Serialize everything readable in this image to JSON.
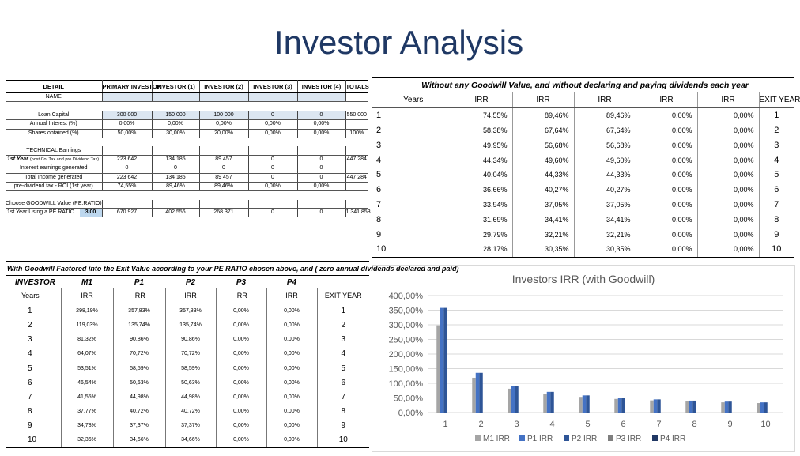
{
  "title": "Investor Analysis",
  "detail": {
    "headers": [
      "DETAIL",
      "PRIMARY INVESTOR",
      "INVESTOR (1)",
      "INVESTOR (2)",
      "INVESTOR (3)",
      "INVESTOR (4)",
      "TOTALS"
    ],
    "name_label": "NAME",
    "loan_capital": [
      "Loan Capital",
      "300 000",
      "150 000",
      "100 000",
      "0",
      "0",
      "550 000"
    ],
    "annual_interest": [
      "Annual Interest (%)",
      "0,00%",
      "0,00%",
      "0,00%",
      "0,00%",
      "0,00%",
      ""
    ],
    "shares_obtained": [
      "Shares obtained (%)",
      "50,00%",
      "30,00%",
      "20,00%",
      "0,00%",
      "0,00%",
      "100%"
    ],
    "technical_earnings": "TECHNICAL Earnings",
    "first_year_label": "1st Year",
    "first_year_note": "(post Co. Tax and pre Dividend Tax)",
    "first_year": [
      "223 642",
      "134 185",
      "89 457",
      "0",
      "0",
      "447 284"
    ],
    "interest_earnings": [
      "Interest earnings generated",
      "0",
      "0",
      "0",
      "0",
      "0",
      ""
    ],
    "total_income": [
      "Total Income generated",
      "223 642",
      "134 185",
      "89 457",
      "0",
      "0",
      "447 284"
    ],
    "pre_div_tax": [
      "pre-dividend tax - ROI (1st year)",
      "74,55%",
      "89,46%",
      "89,46%",
      "0,00%",
      "0,00%",
      ""
    ],
    "goodwill_label": "Choose GOODWILL Value (PE:RATIO)",
    "pe_label": "1st Year Using a PE RATIO",
    "pe_value": "3,00",
    "pe_row": [
      "670 927",
      "402 556",
      "268 371",
      "0",
      "0",
      "1 341 853"
    ]
  },
  "irr_no_goodwill": {
    "caption": "Without any Goodwill Value, and without declaring and paying dividends each year",
    "headers": [
      "Years",
      "IRR",
      "IRR",
      "IRR",
      "IRR",
      "IRR",
      "EXIT YEAR"
    ],
    "rows": [
      [
        "1",
        "74,55%",
        "89,46%",
        "89,46%",
        "0,00%",
        "0,00%",
        "1"
      ],
      [
        "2",
        "58,38%",
        "67,64%",
        "67,64%",
        "0,00%",
        "0,00%",
        "2"
      ],
      [
        "3",
        "49,95%",
        "56,68%",
        "56,68%",
        "0,00%",
        "0,00%",
        "3"
      ],
      [
        "4",
        "44,34%",
        "49,60%",
        "49,60%",
        "0,00%",
        "0,00%",
        "4"
      ],
      [
        "5",
        "40,04%",
        "44,33%",
        "44,33%",
        "0,00%",
        "0,00%",
        "5"
      ],
      [
        "6",
        "36,66%",
        "40,27%",
        "40,27%",
        "0,00%",
        "0,00%",
        "6"
      ],
      [
        "7",
        "33,94%",
        "37,05%",
        "37,05%",
        "0,00%",
        "0,00%",
        "7"
      ],
      [
        "8",
        "31,69%",
        "34,41%",
        "34,41%",
        "0,00%",
        "0,00%",
        "8"
      ],
      [
        "9",
        "29,79%",
        "32,21%",
        "32,21%",
        "0,00%",
        "0,00%",
        "9"
      ],
      [
        "10",
        "28,17%",
        "30,35%",
        "30,35%",
        "0,00%",
        "0,00%",
        "10"
      ]
    ]
  },
  "irr_goodwill": {
    "caption": "With Goodwill Factored into the Exit Value according to your PE RATIO chosen above, and ( zero annual dividends declared and paid)",
    "investor_headers": [
      "INVESTOR",
      "M1",
      "P1",
      "P2",
      "P3",
      "P4",
      ""
    ],
    "headers": [
      "Years",
      "IRR",
      "IRR",
      "IRR",
      "IRR",
      "IRR",
      "EXIT YEAR"
    ],
    "rows": [
      [
        "1",
        "298,19%",
        "357,83%",
        "357,83%",
        "0,00%",
        "0,00%",
        "1"
      ],
      [
        "2",
        "119,03%",
        "135,74%",
        "135,74%",
        "0,00%",
        "0,00%",
        "2"
      ],
      [
        "3",
        "81,32%",
        "90,86%",
        "90,86%",
        "0,00%",
        "0,00%",
        "3"
      ],
      [
        "4",
        "64,07%",
        "70,72%",
        "70,72%",
        "0,00%",
        "0,00%",
        "4"
      ],
      [
        "5",
        "53,51%",
        "58,59%",
        "58,59%",
        "0,00%",
        "0,00%",
        "5"
      ],
      [
        "6",
        "46,54%",
        "50,63%",
        "50,63%",
        "0,00%",
        "0,00%",
        "6"
      ],
      [
        "7",
        "41,55%",
        "44,98%",
        "44,98%",
        "0,00%",
        "0,00%",
        "7"
      ],
      [
        "8",
        "37,77%",
        "40,72%",
        "40,72%",
        "0,00%",
        "0,00%",
        "8"
      ],
      [
        "9",
        "34,78%",
        "37,37%",
        "37,37%",
        "0,00%",
        "0,00%",
        "9"
      ],
      [
        "10",
        "32,36%",
        "34,66%",
        "34,66%",
        "0,00%",
        "0,00%",
        "10"
      ]
    ]
  },
  "chart_data": {
    "type": "bar",
    "title": "Investors IRR (with Goodwill)",
    "categories": [
      "1",
      "2",
      "3",
      "4",
      "5",
      "6",
      "7",
      "8",
      "9",
      "10"
    ],
    "series": [
      {
        "name": "M1 IRR",
        "color": "#a5a5a5",
        "values": [
          298.19,
          119.03,
          81.32,
          64.07,
          53.51,
          46.54,
          41.55,
          37.77,
          34.78,
          32.36
        ]
      },
      {
        "name": "P1 IRR",
        "color": "#4472c4",
        "values": [
          357.83,
          135.74,
          90.86,
          70.72,
          58.59,
          50.63,
          44.98,
          40.72,
          37.37,
          34.66
        ]
      },
      {
        "name": "P2 IRR",
        "color": "#2e5597",
        "values": [
          357.83,
          135.74,
          90.86,
          70.72,
          58.59,
          50.63,
          44.98,
          40.72,
          37.37,
          34.66
        ]
      },
      {
        "name": "P3 IRR",
        "color": "#7f7f7f",
        "values": [
          0,
          0,
          0,
          0,
          0,
          0,
          0,
          0,
          0,
          0
        ]
      },
      {
        "name": "P4 IRR",
        "color": "#203864",
        "values": [
          0,
          0,
          0,
          0,
          0,
          0,
          0,
          0,
          0,
          0
        ]
      }
    ],
    "yticks": [
      "0,00%",
      "50,00%",
      "100,00%",
      "150,00%",
      "200,00%",
      "250,00%",
      "300,00%",
      "350,00%",
      "400,00%"
    ],
    "ylim": [
      0,
      400
    ],
    "legend": "bottom",
    "grid": true
  }
}
